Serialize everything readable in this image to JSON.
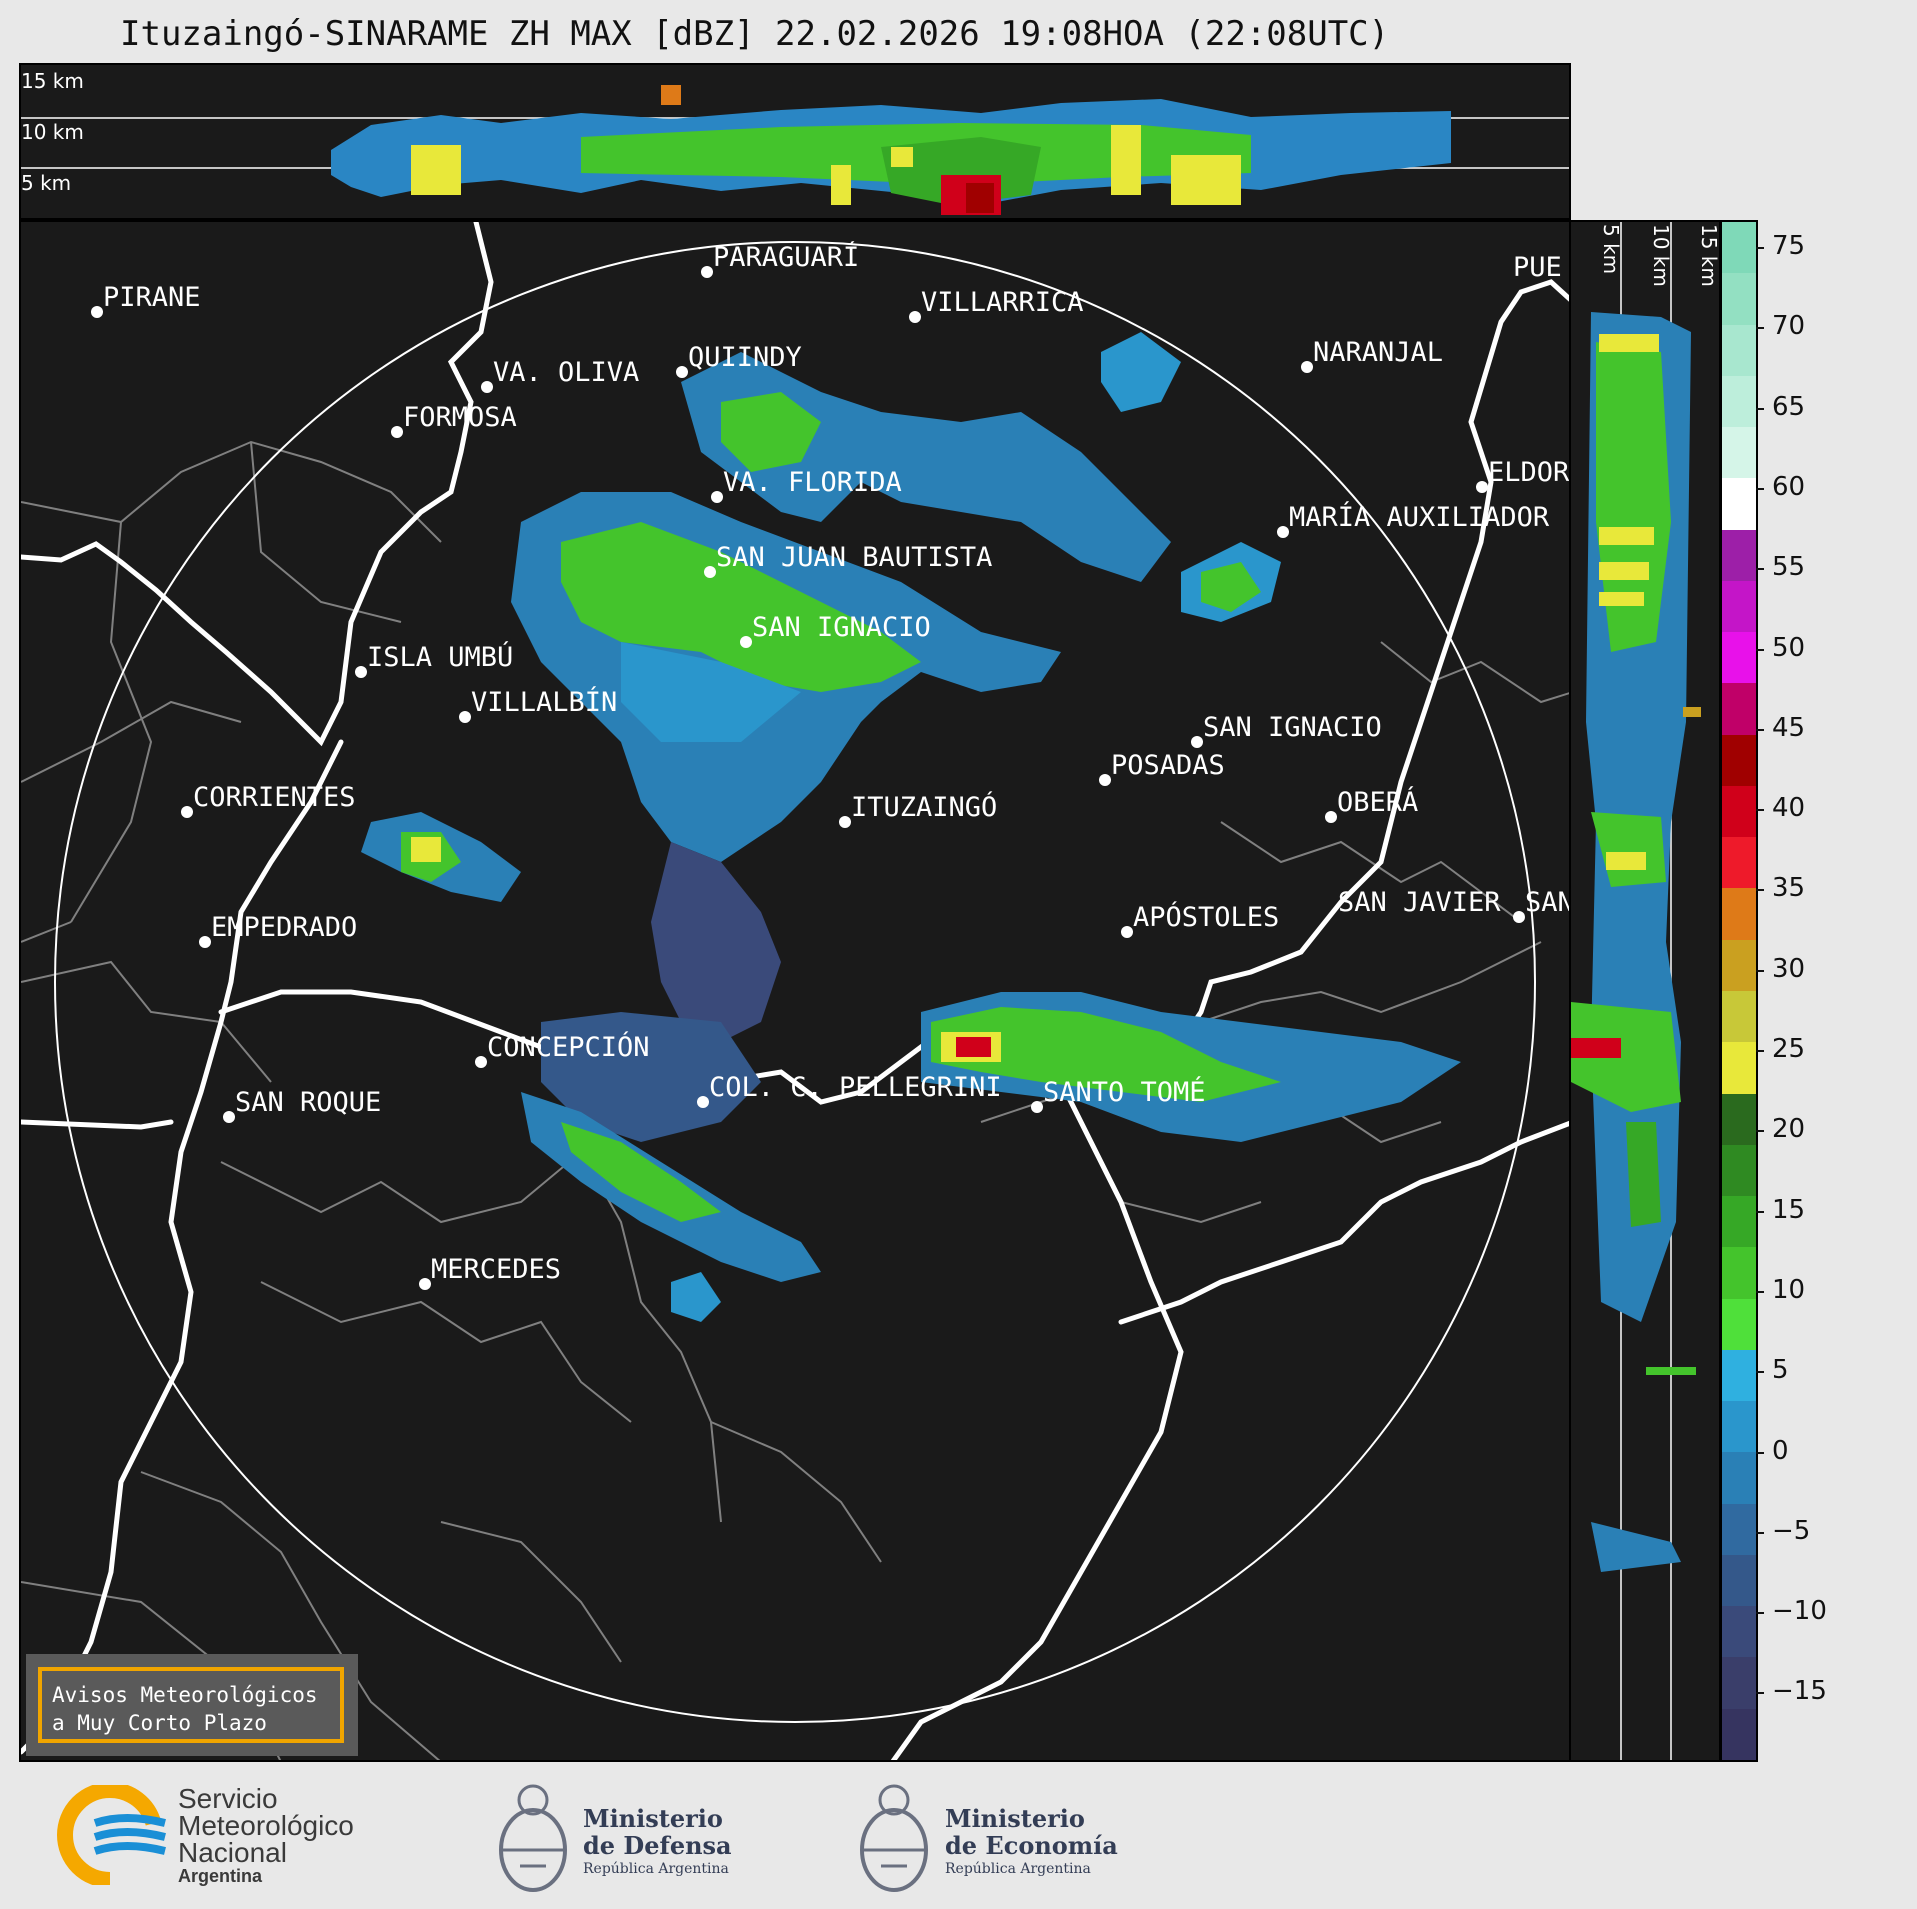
{
  "title": "Ituzaingó-SINARAME ZH MAX [dBZ] 22.02.2026 19:08HOA (22:08UTC)",
  "top_panel": {
    "height_labels": [
      "15 km",
      "10 km",
      "5 km"
    ]
  },
  "side_panel": {
    "height_labels": [
      "5 km",
      "10 km",
      "15 km"
    ]
  },
  "colorbar": {
    "ticks": [
      "75",
      "70",
      "65",
      "60",
      "55",
      "50",
      "45",
      "40",
      "35",
      "30",
      "25",
      "20",
      "15",
      "10",
      "5",
      "0",
      "−5",
      "−10",
      "−15"
    ],
    "colors": [
      "#7fd9b8",
      "#93e0c2",
      "#a8e7cf",
      "#bdeedb",
      "#d5f5e8",
      "#ffffff",
      "#9d1fa8",
      "#c415c8",
      "#e811ea",
      "#c00068",
      "#a00000",
      "#d0001a",
      "#ee1a2a",
      "#de7a18",
      "#caa020",
      "#c8c838",
      "#e8e83a",
      "#2a6a1e",
      "#2f8a22",
      "#36a826",
      "#44c42c",
      "#4fe03a",
      "#2fb0e0",
      "#2a96cc",
      "#2a80b6",
      "#306aa0",
      "#34588a",
      "#3a4a7a",
      "#3a3e6a",
      "#363460"
    ]
  },
  "cities": [
    {
      "name": "PARAGUARÍ"
    },
    {
      "name": "PIRANE"
    },
    {
      "name": "VILLARRICA"
    },
    {
      "name": "QUIINDY"
    },
    {
      "name": "VA. OLIVA"
    },
    {
      "name": "NARANJAL"
    },
    {
      "name": "FORMOSA"
    },
    {
      "name": "VA. FLORIDA"
    },
    {
      "name": "ELDOR"
    },
    {
      "name": "MARÍA AUXILIADOR"
    },
    {
      "name": "SAN JUAN BAUTISTA"
    },
    {
      "name": "SAN IGNACIO"
    },
    {
      "name": "ISLA UMBÚ"
    },
    {
      "name": "VILLALBÍN"
    },
    {
      "name": "SAN IGNACIO"
    },
    {
      "name": "POSADAS"
    },
    {
      "name": "CORRIENTES"
    },
    {
      "name": "ITUZAINGÓ"
    },
    {
      "name": "OBERÁ"
    },
    {
      "name": "APÓSTOLES"
    },
    {
      "name": "SAN JAVIER"
    },
    {
      "name": "SAN"
    },
    {
      "name": "EMPEDRADO"
    },
    {
      "name": "CONCEPCIÓN"
    },
    {
      "name": "COL. C. PELLEGRINI"
    },
    {
      "name": "SANTO TOMÉ"
    },
    {
      "name": "SAN ROQUE"
    },
    {
      "name": "MERCEDES"
    },
    {
      "name": "PUE"
    }
  ],
  "warning": {
    "line1": "Avisos Meteorológicos",
    "line2": "a Muy Corto Plazo"
  },
  "logos": {
    "smn": {
      "line1": "Servicio",
      "line2": "Meteorológico",
      "line3": "Nacional",
      "line4": "Argentina",
      "blue": "#1a8fd6",
      "orange": "#f5a800"
    },
    "defensa": {
      "line1": "Ministerio",
      "line2": "de Defensa",
      "line3": "República Argentina"
    },
    "economia": {
      "line1": "Ministerio",
      "line2": "de Economía",
      "line3": "República Argentina"
    }
  }
}
